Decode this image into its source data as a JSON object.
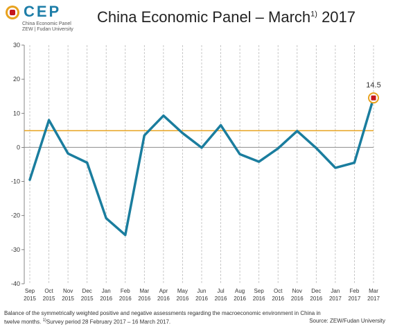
{
  "brand": {
    "logo_text": "CEP",
    "line1": "China Economic Panel",
    "line2": "ZEW | Fudan University",
    "accent": "#1e7ea8",
    "marker_color": "#c4161c",
    "gold": "#e8a21e"
  },
  "title": {
    "main": "China Economic Panel – March",
    "sup": "1)",
    "year": "2017"
  },
  "footer": {
    "line1": "Balance of the symmetrically weighted positive and negative assessments regarding the macroeconomic environment in China in",
    "line2_pre": "twelve months. ",
    "line2_sup": "1)",
    "line2_post": "Survey period 28 February 2017 – 16 March 2017.",
    "source": "Source: ZEW/Fudan University"
  },
  "chart_data": {
    "type": "line",
    "title": "",
    "xlabel": "",
    "ylabel": "",
    "ylim": [
      -40,
      30
    ],
    "yticks": [
      30,
      20,
      10,
      0,
      -10,
      -20,
      -30,
      -40
    ],
    "categories": [
      {
        "month": "Sep",
        "year": "2015"
      },
      {
        "month": "Oct",
        "year": "2015"
      },
      {
        "month": "Nov",
        "year": "2015"
      },
      {
        "month": "Dec",
        "year": "2015"
      },
      {
        "month": "Jan",
        "year": "2016"
      },
      {
        "month": "Feb",
        "year": "2016"
      },
      {
        "month": "Mar",
        "year": "2016"
      },
      {
        "month": "Apr",
        "year": "2016"
      },
      {
        "month": "May",
        "year": "2016"
      },
      {
        "month": "Jun",
        "year": "2016"
      },
      {
        "month": "Jul",
        "year": "2016"
      },
      {
        "month": "Aug",
        "year": "2016"
      },
      {
        "month": "Sep",
        "year": "2016"
      },
      {
        "month": "Oct",
        "year": "2016"
      },
      {
        "month": "Nov",
        "year": "2016"
      },
      {
        "month": "Dec",
        "year": "2016"
      },
      {
        "month": "Jan",
        "year": "2017"
      },
      {
        "month": "Feb",
        "year": "2017"
      },
      {
        "month": "Mar",
        "year": "2017"
      }
    ],
    "series": [
      {
        "color": "#1a7d9e",
        "values": [
          -9.5,
          8.0,
          -1.8,
          -4.5,
          -20.8,
          -25.7,
          3.5,
          9.3,
          4.2,
          -0.1,
          6.5,
          -2.0,
          -4.2,
          -0.3,
          4.8,
          -0.2,
          -6.0,
          -4.5,
          14.5
        ]
      }
    ],
    "reference_line": {
      "value": 4.9,
      "color": "#e8a21e"
    },
    "zero_line_color": "#999999",
    "last_label": "14.5",
    "grid": "vertical-dashed"
  }
}
